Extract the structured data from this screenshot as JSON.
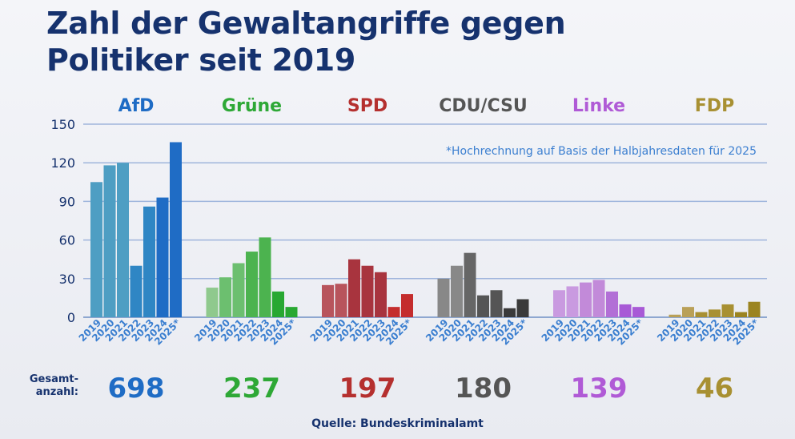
{
  "title_line1": "Zahl der Gewaltangriffe gegen",
  "title_line2": "Politiker seit 2019",
  "footnote": "*Hochrechnung auf Basis der Halbjahresdaten für 2025",
  "total_label_line1": "Gesamt-",
  "total_label_line2": "anzahl:",
  "source": "Quelle: Bundeskriminalamt",
  "chart_data": {
    "type": "bar",
    "x": [
      "2019",
      "2020",
      "2021",
      "2022",
      "2023",
      "2024",
      "2025*"
    ],
    "ylim": [
      0,
      150
    ],
    "yticks": [
      0,
      30,
      60,
      90,
      120,
      150
    ],
    "grid": true,
    "series": [
      {
        "name": "AfD",
        "total": "698",
        "values": [
          105,
          118,
          120,
          40,
          86,
          93,
          136
        ],
        "colors": [
          "#4e9ec3",
          "#4e9ec3",
          "#4e9ec3",
          "#2f86c4",
          "#2f86c4",
          "#1f6cc5",
          "#1f6cc5"
        ],
        "label_color": "#1f6cc5"
      },
      {
        "name": "Grüne",
        "total": "237",
        "values": [
          23,
          31,
          42,
          51,
          62,
          20,
          8
        ],
        "colors": [
          "#8fc98d",
          "#6cbf6f",
          "#6cbf6f",
          "#4cb34f",
          "#4cb34f",
          "#28a832",
          "#28a832"
        ],
        "label_color": "#2ea836"
      },
      {
        "name": "SPD",
        "total": "197",
        "values": [
          25,
          26,
          45,
          40,
          35,
          8,
          18
        ],
        "colors": [
          "#b8545c",
          "#b8545c",
          "#a8343e",
          "#a8343e",
          "#a8343e",
          "#c42d2d",
          "#c42d2d"
        ],
        "label_color": "#b5302f"
      },
      {
        "name": "CDU/CSU",
        "total": "180",
        "values": [
          30,
          40,
          50,
          17,
          21,
          7,
          14
        ],
        "colors": [
          "#888888",
          "#888888",
          "#666666",
          "#555555",
          "#555555",
          "#3a3a3a",
          "#3a3a3a"
        ],
        "label_color": "#555555"
      },
      {
        "name": "Linke",
        "total": "139",
        "values": [
          21,
          24,
          27,
          29,
          20,
          10,
          8
        ],
        "colors": [
          "#c99ae0",
          "#c99ae0",
          "#c28ad9",
          "#c28ad9",
          "#b26fd6",
          "#a85ad6",
          "#a85ad6"
        ],
        "label_color": "#b05ad6"
      },
      {
        "name": "FDP",
        "total": "46",
        "values": [
          2,
          8,
          4,
          6,
          10,
          4,
          12
        ],
        "colors": [
          "#b9a057",
          "#b9a057",
          "#a89032",
          "#a89032",
          "#a89032",
          "#9b8420",
          "#9b8420"
        ],
        "label_color": "#a89032"
      }
    ]
  }
}
